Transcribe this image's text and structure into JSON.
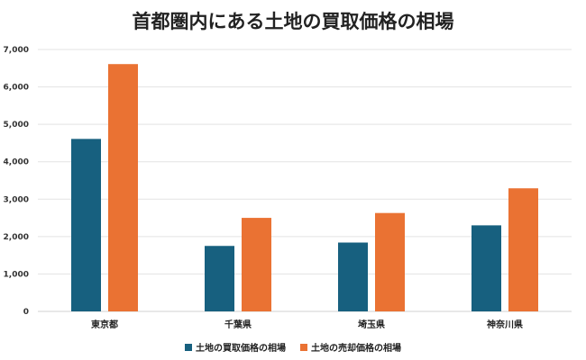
{
  "chart_data": {
    "type": "bar",
    "title": "首都圏内にある土地の買取価格の相場",
    "categories": [
      "東京都",
      "千葉県",
      "埼玉県",
      "神奈川県"
    ],
    "series": [
      {
        "name": "土地の買取価格の相場",
        "values": [
          4610,
          1750,
          1840,
          2300
        ],
        "color": "#17607f"
      },
      {
        "name": "土地の売却価格の相場",
        "values": [
          6610,
          2500,
          2630,
          3290
        ],
        "color": "#ea7233"
      }
    ],
    "yticks": [
      "0",
      "1,000",
      "2,000",
      "3,000",
      "4,000",
      "5,000",
      "6,000",
      "7,000"
    ],
    "ylim": [
      0,
      7000
    ],
    "grid": true,
    "legend": "bottom",
    "xlabel": "",
    "ylabel": ""
  }
}
